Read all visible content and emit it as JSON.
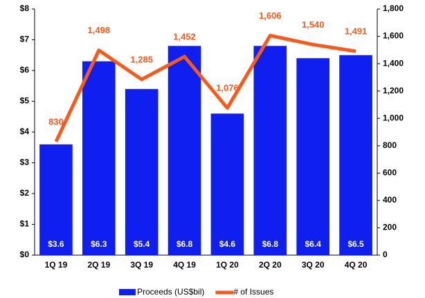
{
  "chart_data": {
    "type": "bar",
    "categories": [
      "1Q 19",
      "2Q 19",
      "3Q 19",
      "4Q 19",
      "1Q 20",
      "2Q 20",
      "3Q 20",
      "4Q 20"
    ],
    "series": [
      {
        "name": "Proceeds (US$bil)",
        "type": "bar",
        "color": "#0f1ff0",
        "axis": "y",
        "values": [
          3.6,
          6.3,
          5.4,
          6.8,
          4.6,
          6.8,
          6.4,
          6.5
        ],
        "value_labels": [
          "$3.6",
          "$6.3",
          "$5.4",
          "$6.8",
          "$4.6",
          "$6.8",
          "$6.4",
          "$6.5"
        ]
      },
      {
        "name": "# of Issues",
        "type": "line",
        "color": "#f85a1a",
        "axis": "y2",
        "values": [
          830,
          1498,
          1285,
          1452,
          1076,
          1606,
          1540,
          1491
        ],
        "value_labels": [
          "830",
          "1,498",
          "1,285",
          "1,452",
          "1,076",
          "1,606",
          "1,540",
          "1,491"
        ]
      }
    ],
    "ylim": [
      0,
      8
    ],
    "yticks": [
      {
        "value": 0,
        "label": "$0"
      },
      {
        "value": 1,
        "label": "$1"
      },
      {
        "value": 2,
        "label": "$2"
      },
      {
        "value": 3,
        "label": "$3"
      },
      {
        "value": 4,
        "label": "$4"
      },
      {
        "value": 5,
        "label": "$5"
      },
      {
        "value": 6,
        "label": "$6"
      },
      {
        "value": 7,
        "label": "$7"
      },
      {
        "value": 8,
        "label": "$8"
      }
    ],
    "y2lim": [
      0,
      1800
    ],
    "y2ticks": [
      0,
      200,
      400,
      600,
      800,
      {
        "value": 1000,
        "label": "1,000"
      },
      {
        "value": 1200,
        "label": "1,200"
      },
      {
        "value": 1400,
        "label": "1,400"
      },
      {
        "value": 1600,
        "label": "1,600"
      },
      {
        "value": 1800,
        "label": "1,800"
      }
    ],
    "legend": "bottom"
  }
}
